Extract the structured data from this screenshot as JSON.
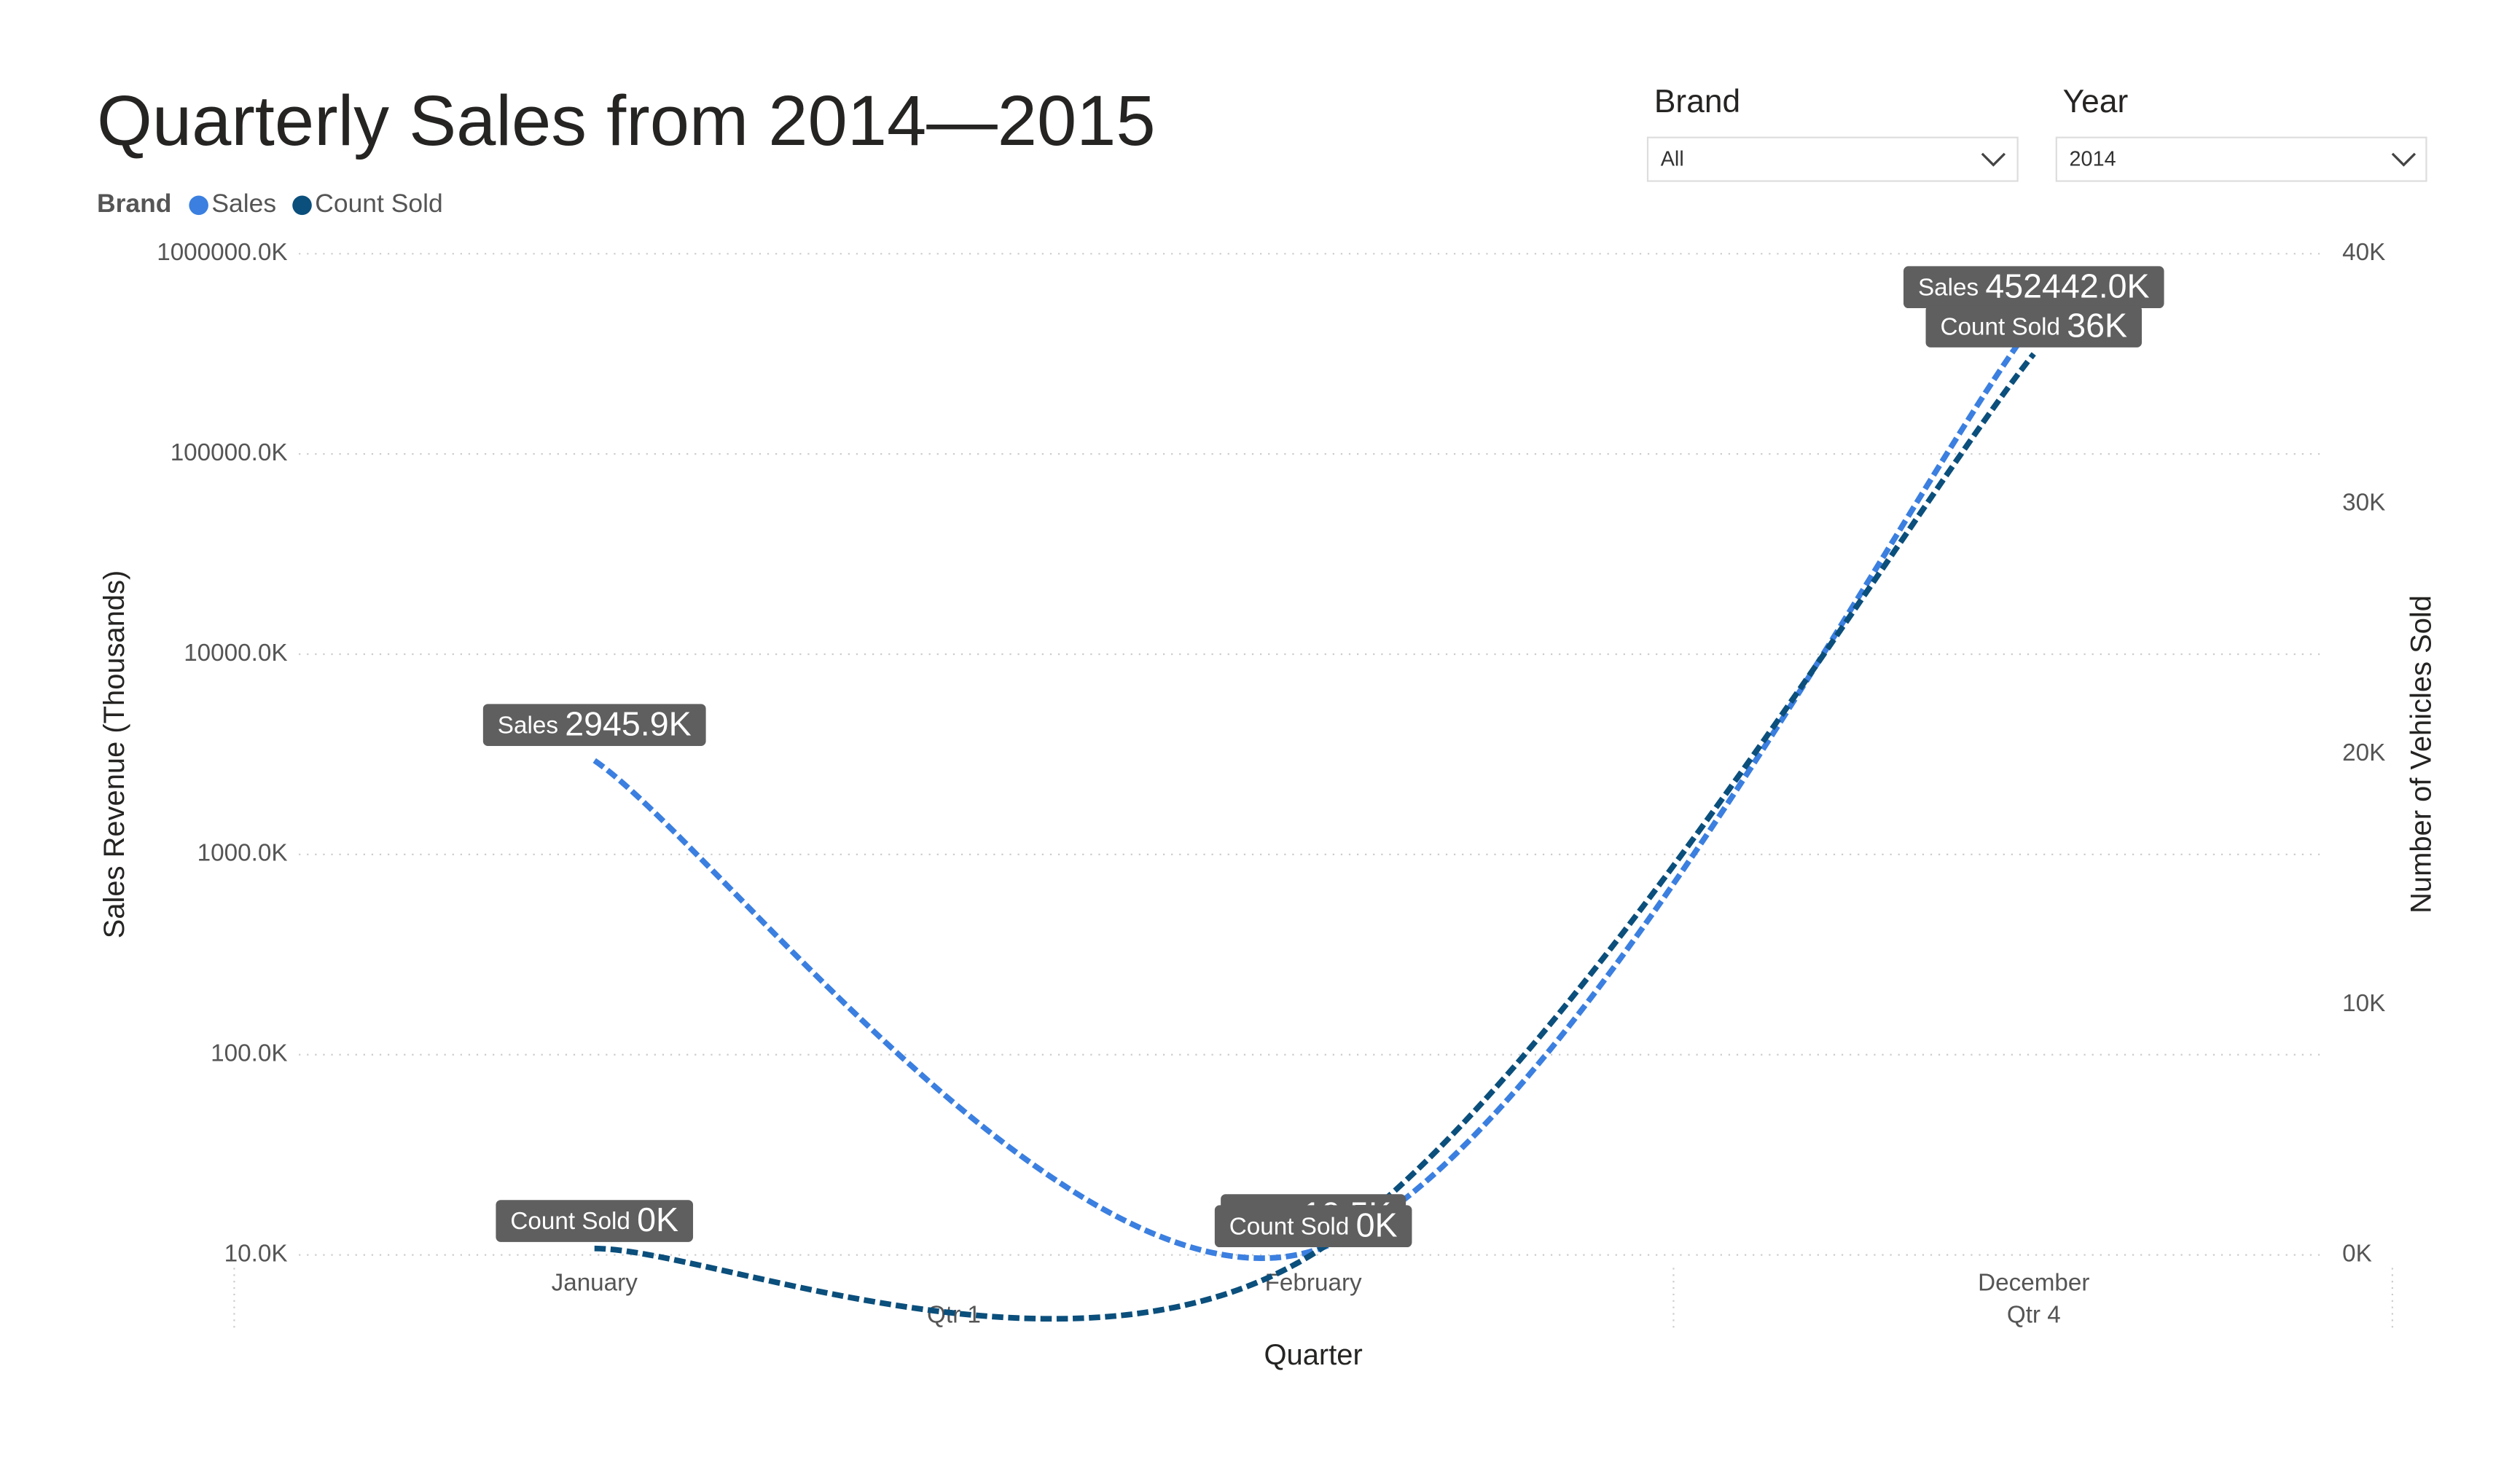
{
  "title": "Quarterly Sales from 2014—2015",
  "slicers": [
    {
      "label": "Brand",
      "value": "All"
    },
    {
      "label": "Year",
      "value": "2014"
    }
  ],
  "chart_data": {
    "type": "line",
    "legend_title": "Brand",
    "x_label": "Quarter",
    "y_label": "Sales Revenue (Thousands)",
    "y2_label": "Number of Vehicles Sold",
    "categories": [
      "January",
      "February",
      "December"
    ],
    "groups": [
      {
        "label": "Qtr 1",
        "span": [
          0,
          1
        ]
      },
      {
        "label": "Qtr 4",
        "span": [
          2,
          2
        ]
      }
    ],
    "series": [
      {
        "name": "Sales",
        "color": "#3b7fe0",
        "values": [
          2945.9,
          10.5,
          452442.0
        ],
        "value_labels": [
          "2945.9K",
          "10.5K",
          "452442.0K"
        ]
      },
      {
        "name": "Count Sold",
        "color": "#0b4f7c",
        "axis": "y2",
        "values": [
          260,
          50,
          36000
        ],
        "value_labels": [
          "0K",
          "0K",
          "36K"
        ]
      }
    ],
    "y_scale": "log",
    "ylim": [
      10,
      1000000
    ],
    "yticks": [
      {
        "value": 10,
        "label": "10.0K"
      },
      {
        "value": 100,
        "label": "100.0K"
      },
      {
        "value": 1000,
        "label": "1000.0K"
      },
      {
        "value": 10000,
        "label": "10000.0K"
      },
      {
        "value": 100000,
        "label": "100000.0K"
      },
      {
        "value": 1000000,
        "label": "1000000.0K"
      }
    ],
    "y2lim": [
      0,
      40000
    ],
    "y2ticks": [
      {
        "value": 0,
        "label": "0K"
      },
      {
        "value": 10000,
        "label": "10K"
      },
      {
        "value": 20000,
        "label": "20K"
      },
      {
        "value": 30000,
        "label": "30K"
      },
      {
        "value": 40000,
        "label": "40K"
      }
    ],
    "grid": true
  }
}
